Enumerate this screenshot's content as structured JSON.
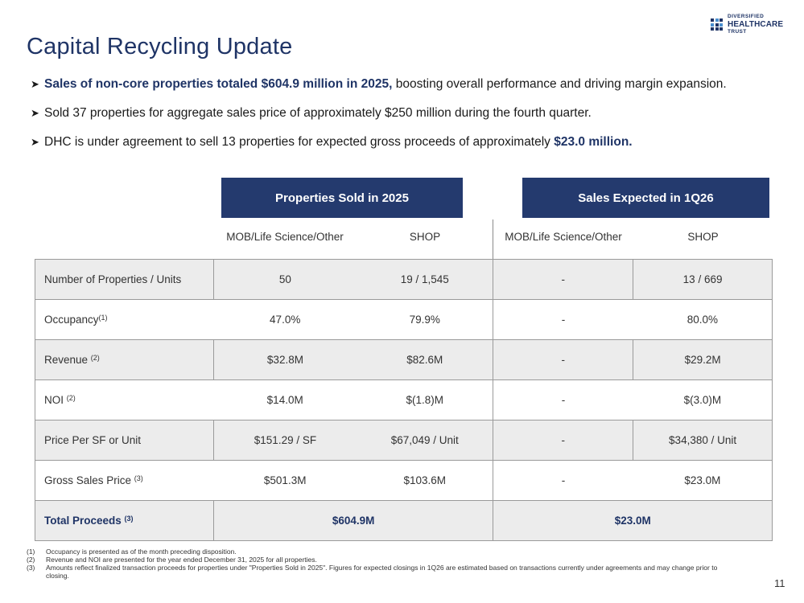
{
  "title": "Capital Recycling Update",
  "logo": {
    "line1": "DIVERSIFIED",
    "line2": "HEALTHCARE",
    "line3": "TRUST"
  },
  "bullets": [
    {
      "bold": "Sales of non-core properties totaled $604.9 million in 2025,",
      "text": " boosting overall performance and driving margin expansion.",
      "tail_bold": ""
    },
    {
      "bold": "",
      "text": "Sold 37 properties for aggregate sales price of approximately $250 million during the fourth quarter.",
      "tail_bold": ""
    },
    {
      "bold": "",
      "text": "DHC is under agreement to sell 13 properties for expected gross proceeds of approximately ",
      "tail_bold": "$23.0 million."
    }
  ],
  "groups": {
    "sold": "Properties Sold in 2025",
    "expected": "Sales Expected in 1Q26"
  },
  "columns": [
    "MOB/Life Science/Other",
    "SHOP",
    "MOB/Life Science/Other",
    "SHOP"
  ],
  "rows": [
    {
      "label": "Number of  Properties / Units",
      "sup": "",
      "values": [
        "50",
        "19 / 1,545",
        "-",
        "13 / 669"
      ]
    },
    {
      "label": "Occupancy",
      "sup": "(1)",
      "values": [
        "47.0%",
        "79.9%",
        "-",
        "80.0%"
      ]
    },
    {
      "label": "Revenue ",
      "sup": "(2)",
      "values": [
        "$32.8M",
        "$82.6M",
        "-",
        "$29.2M"
      ]
    },
    {
      "label": "NOI ",
      "sup": "(2)",
      "values": [
        "$14.0M",
        "$(1.8)M",
        "-",
        "$(3.0)M"
      ]
    },
    {
      "label": "Price Per SF or Unit",
      "sup": "",
      "values": [
        "$151.29 / SF",
        "$67,049 / Unit",
        "-",
        "$34,380 / Unit"
      ]
    },
    {
      "label": "Gross Sales Price ",
      "sup": "(3)",
      "values": [
        "$501.3M",
        "$103.6M",
        "-",
        "$23.0M"
      ]
    }
  ],
  "total": {
    "label": "Total Proceeds ",
    "sup": "(3)",
    "sold": "$604.9M",
    "expected": "$23.0M"
  },
  "footnotes": [
    {
      "num": "(1)",
      "text": "Occupancy is presented as of the month preceding disposition."
    },
    {
      "num": "(2)",
      "text": "Revenue and NOI are presented for the year ended December 31, 2025 for all properties."
    },
    {
      "num": "(3)",
      "text": "Amounts reflect finalized transaction proceeds for properties under \"Properties Sold in 2025\". Figures for expected closings in 1Q26 are estimated based on transactions currently under agreements and may change prior to closing."
    }
  ],
  "page_number": "11",
  "colors": {
    "navy": "#243a6e",
    "title": "#1f3466",
    "shade": "#ececec"
  }
}
